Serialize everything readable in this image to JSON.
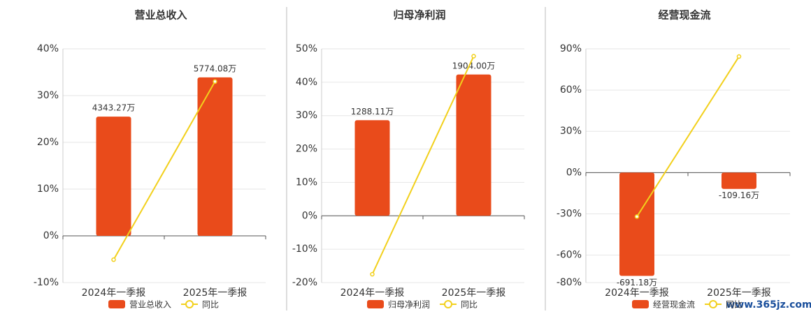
{
  "chart_data": [
    {
      "type": "bar",
      "title": "营业总收入",
      "categories": [
        "2024年一季报",
        "2025年一季报"
      ],
      "series": [
        {
          "name": "营业总收入",
          "type": "bar",
          "axis": "y2",
          "color": "#e94b1b",
          "values": [
            4343.27,
            5774.08
          ],
          "value_labels": [
            "4343.27万",
            "5774.08万"
          ]
        },
        {
          "name": "同比",
          "type": "line",
          "color": "#f2d01c",
          "values": [
            -5.1,
            33
          ]
        }
      ],
      "ylim": [
        -10,
        40
      ],
      "yticks": [
        {
          "value": -10,
          "label": "-10%"
        },
        {
          "value": 0,
          "label": "0%"
        },
        {
          "value": 10,
          "label": "10%"
        },
        {
          "value": 20,
          "label": "20%"
        },
        {
          "value": 30,
          "label": "30%"
        },
        {
          "value": 40,
          "label": "40%"
        }
      ],
      "y2lim": [
        -1703,
        6812
      ],
      "grid": true
    },
    {
      "type": "bar",
      "title": "归母净利润",
      "categories": [
        "2024年一季报",
        "2025年一季报"
      ],
      "series": [
        {
          "name": "归母净利润",
          "type": "bar",
          "axis": "y2",
          "color": "#e94b1b",
          "values": [
            1288.11,
            1904.0
          ],
          "value_labels": [
            "1288.11万",
            "1904.00万"
          ]
        },
        {
          "name": "同比",
          "type": "line",
          "color": "#f2d01c",
          "values": [
            -17.5,
            47.8
          ]
        }
      ],
      "ylim": [
        -20,
        50
      ],
      "yticks": [
        {
          "value": -20,
          "label": "-20%"
        },
        {
          "value": -10,
          "label": "-10%"
        },
        {
          "value": 0,
          "label": "0%"
        },
        {
          "value": 10,
          "label": "10%"
        },
        {
          "value": 20,
          "label": "20%"
        },
        {
          "value": 30,
          "label": "30%"
        },
        {
          "value": 40,
          "label": "40%"
        },
        {
          "value": 50,
          "label": "50%"
        }
      ],
      "y2lim": [
        -900,
        2250
      ],
      "grid": true
    },
    {
      "type": "bar",
      "title": "经营现金流",
      "categories": [
        "2024年一季报",
        "2025年一季报"
      ],
      "series": [
        {
          "name": "经营现金流",
          "type": "bar",
          "axis": "y2",
          "color": "#e94b1b",
          "values": [
            -691.18,
            -109.16
          ],
          "value_labels": [
            "-691.18万",
            "-109.16万"
          ]
        },
        {
          "name": "同比",
          "type": "line",
          "color": "#f2d01c",
          "values": [
            -32,
            84.4
          ]
        }
      ],
      "ylim": [
        -80,
        90
      ],
      "yticks": [
        {
          "value": -80,
          "label": "-80%"
        },
        {
          "value": -60,
          "label": "-60%"
        },
        {
          "value": -30,
          "label": "-30%"
        },
        {
          "value": 0,
          "label": "0%"
        },
        {
          "value": 30,
          "label": "30%"
        },
        {
          "value": 60,
          "label": "60%"
        },
        {
          "value": 90,
          "label": "90%"
        }
      ],
      "y2lim": [
        -736,
        828
      ],
      "grid": true
    }
  ],
  "watermark": "www.365jz.com"
}
